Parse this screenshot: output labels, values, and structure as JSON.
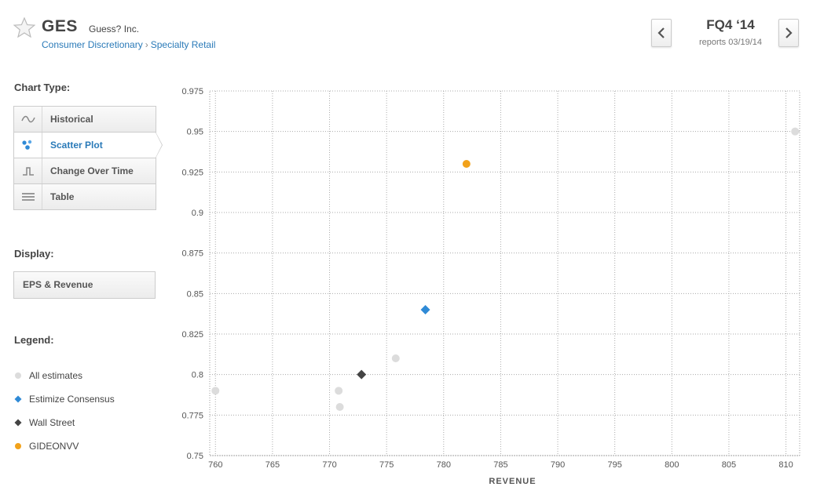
{
  "header": {
    "ticker": "GES",
    "company": "Guess? Inc.",
    "sector": "Consumer Discretionary",
    "breadcrumb_sep": "›",
    "industry": "Specialty Retail",
    "quarter": "FQ4 ‘14",
    "reports": "reports 03/19/14"
  },
  "sidebar": {
    "chart_type_label": "Chart Type:",
    "chart_types": [
      {
        "label": "Historical",
        "icon": "wave-icon"
      },
      {
        "label": "Scatter Plot",
        "icon": "scatter-icon",
        "active": true
      },
      {
        "label": "Change Over Time",
        "icon": "step-icon"
      },
      {
        "label": "Table",
        "icon": "table-icon"
      }
    ],
    "display_label": "Display:",
    "display_value": "EPS & Revenue",
    "legend_label": "Legend:",
    "legend": [
      {
        "label": "All estimates",
        "color": "#dcdcdc",
        "shape": "circle"
      },
      {
        "label": "Estimize Consensus",
        "color": "#2f8ad6",
        "shape": "diamond"
      },
      {
        "label": "Wall Street",
        "color": "#444444",
        "shape": "diamond"
      },
      {
        "label": "GIDEONVV",
        "color": "#f2a21b",
        "shape": "circle"
      }
    ]
  },
  "chart_data": {
    "type": "scatter",
    "xlabel": "REVENUE",
    "ylabel": "",
    "xlim": [
      759.5,
      811.2
    ],
    "ylim": [
      0.75,
      0.975
    ],
    "xticks": [
      760,
      765,
      770,
      775,
      780,
      785,
      790,
      795,
      800,
      805,
      810
    ],
    "yticks": [
      0.75,
      0.775,
      0.8,
      0.825,
      0.85,
      0.875,
      0.9,
      0.925,
      0.95,
      0.975
    ],
    "grid": true,
    "series": [
      {
        "name": "All estimates",
        "color": "#dcdcdc",
        "shape": "circle",
        "points": [
          [
            760.0,
            0.79
          ],
          [
            770.8,
            0.79
          ],
          [
            770.9,
            0.78
          ],
          [
            775.8,
            0.81
          ],
          [
            810.8,
            0.95
          ]
        ]
      },
      {
        "name": "Estimize Consensus",
        "color": "#2f8ad6",
        "shape": "diamond",
        "points": [
          [
            778.4,
            0.84
          ]
        ]
      },
      {
        "name": "Wall Street",
        "color": "#444444",
        "shape": "diamond",
        "points": [
          [
            772.8,
            0.8
          ]
        ]
      },
      {
        "name": "GIDEONVV",
        "color": "#f2a21b",
        "shape": "circle",
        "points": [
          [
            782.0,
            0.93
          ]
        ]
      }
    ]
  }
}
